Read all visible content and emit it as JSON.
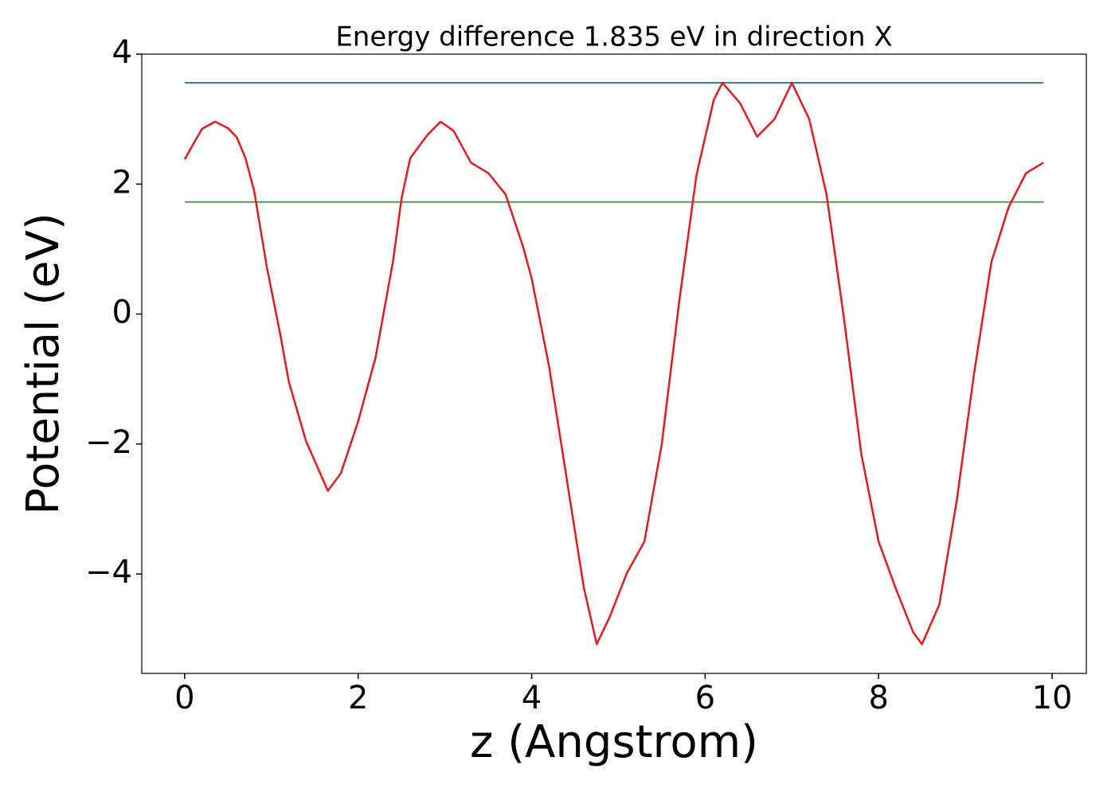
{
  "chart_data": {
    "type": "line",
    "title": "Energy difference 1.835 eV in direction X",
    "x_label": "z (Angstrom)",
    "y_label": "Potential (eV)",
    "xlim": [
      -0.495,
      10.395
    ],
    "ylim": [
      -5.53,
      4.0
    ],
    "xticks": [
      0,
      2,
      4,
      6,
      8,
      10
    ],
    "yticks": [
      {
        "value": -4,
        "label": "−4"
      },
      {
        "value": -2,
        "label": "−2"
      },
      0,
      2,
      4
    ],
    "series": [
      {
        "color": "#e41a1c",
        "x": [
          0,
          0.1,
          0.2,
          0.35,
          0.5,
          0.6,
          0.7,
          0.8,
          0.95,
          1.1,
          1.2,
          1.4,
          1.65,
          1.8,
          2.0,
          2.2,
          2.4,
          2.5,
          2.6,
          2.8,
          2.95,
          3.1,
          3.3,
          3.5,
          3.7,
          3.9,
          4.0,
          4.2,
          4.4,
          4.6,
          4.75,
          4.9,
          5.1,
          5.3,
          5.5,
          5.7,
          5.9,
          6.1,
          6.2,
          6.4,
          6.6,
          6.8,
          7.0,
          7.2,
          7.4,
          7.6,
          7.8,
          8.0,
          8.2,
          8.4,
          8.5,
          8.7,
          8.9,
          9.1,
          9.3,
          9.5,
          9.7,
          9.9
        ],
        "values": [
          2.38,
          2.62,
          2.85,
          2.96,
          2.86,
          2.72,
          2.4,
          1.9,
          0.7,
          -0.3,
          -1.04,
          -1.96,
          -2.72,
          -2.45,
          -1.65,
          -0.67,
          0.8,
          1.78,
          2.4,
          2.76,
          2.96,
          2.82,
          2.33,
          2.17,
          1.84,
          1.04,
          0.55,
          -0.8,
          -2.5,
          -4.2,
          -5.08,
          -4.66,
          -3.98,
          -3.5,
          -2.0,
          0.18,
          2.14,
          3.3,
          3.56,
          3.25,
          2.73,
          3.0,
          3.56,
          3.0,
          1.84,
          -0.06,
          -2.15,
          -3.5,
          -4.23,
          -4.9,
          -5.08,
          -4.47,
          -2.88,
          -0.92,
          0.8,
          1.65,
          2.17,
          2.33
        ]
      },
      {
        "color": "#1f77b4",
        "x": [
          0,
          9.9
        ],
        "values": [
          3.56,
          3.56
        ]
      },
      {
        "color": "#2ca02c",
        "x": [
          0,
          9.9
        ],
        "values": [
          1.725,
          1.725
        ]
      }
    ]
  }
}
